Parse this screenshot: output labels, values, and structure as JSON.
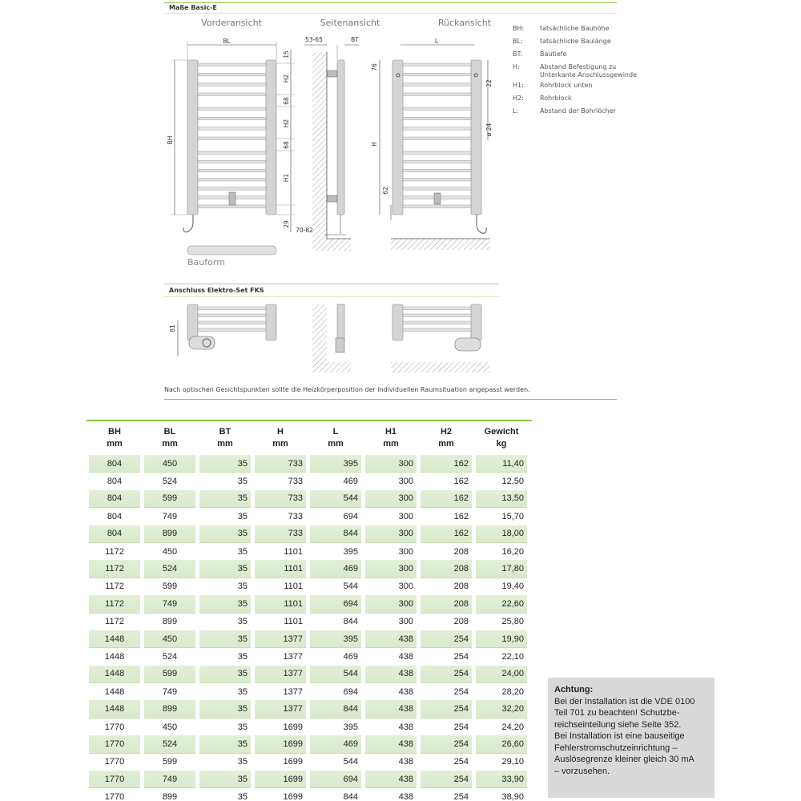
{
  "section1": {
    "title": "Maße Basic-E",
    "views": [
      "Vorderansicht",
      "Seitenansicht",
      "Rückansicht"
    ],
    "bauform_label": "Bauform",
    "dims": {
      "bl": "BL",
      "bh": "BH",
      "d15": "15",
      "h2a": "H2",
      "d68a": "68",
      "h2b": "H2",
      "d68b": "68",
      "h1": "H1",
      "d29": "29",
      "d5365": "53-65",
      "bt": "BT",
      "d7082": "70-82",
      "l": "L",
      "d76": "76",
      "h": "H",
      "d62": "62",
      "d22": "22",
      "d24": "ø 24"
    }
  },
  "legend": [
    {
      "key": "BH:",
      "text": "tatsächliche Bauhöhe"
    },
    {
      "key": "BL:",
      "text": "tatsächliche Baulänge"
    },
    {
      "key": "BT:",
      "text": "Bautiefe"
    },
    {
      "key": "H:",
      "text": "Abstand Befestigung zu Unterkante Anschlussgewinde"
    },
    {
      "key": "H1:",
      "text": "Rohrblock unten"
    },
    {
      "key": "H2:",
      "text": "Rohrblock"
    },
    {
      "key": "L:",
      "text": "Abstand der Bohrlöcher"
    }
  ],
  "section2": {
    "title": "Anschluss Elektro-Set FKS",
    "dim81": "81"
  },
  "footnote": "Nach optischen Gesichtspunkten sollte die Heizkörperposition der individuellen Raumsituation angepasst werden.",
  "table": {
    "headers": [
      [
        "BH",
        "mm"
      ],
      [
        "BL",
        "mm"
      ],
      [
        "BT",
        "mm"
      ],
      [
        "H",
        "mm"
      ],
      [
        "L",
        "mm"
      ],
      [
        "H1",
        "mm"
      ],
      [
        "H2",
        "mm"
      ],
      [
        "Gewicht",
        "kg"
      ]
    ],
    "rows": [
      [
        "804",
        "450",
        "35",
        "733",
        "395",
        "300",
        "162",
        "11,40"
      ],
      [
        "804",
        "524",
        "35",
        "733",
        "469",
        "300",
        "162",
        "12,50"
      ],
      [
        "804",
        "599",
        "35",
        "733",
        "544",
        "300",
        "162",
        "13,50"
      ],
      [
        "804",
        "749",
        "35",
        "733",
        "694",
        "300",
        "162",
        "15,70"
      ],
      [
        "804",
        "899",
        "35",
        "733",
        "844",
        "300",
        "162",
        "18,00"
      ],
      [
        "1172",
        "450",
        "35",
        "1101",
        "395",
        "300",
        "208",
        "16,20"
      ],
      [
        "1172",
        "524",
        "35",
        "1101",
        "469",
        "300",
        "208",
        "17,80"
      ],
      [
        "1172",
        "599",
        "35",
        "1101",
        "544",
        "300",
        "208",
        "19,40"
      ],
      [
        "1172",
        "749",
        "35",
        "1101",
        "694",
        "300",
        "208",
        "22,60"
      ],
      [
        "1172",
        "899",
        "35",
        "1101",
        "844",
        "300",
        "208",
        "25,80"
      ],
      [
        "1448",
        "450",
        "35",
        "1377",
        "395",
        "438",
        "254",
        "19,90"
      ],
      [
        "1448",
        "524",
        "35",
        "1377",
        "469",
        "438",
        "254",
        "22,10"
      ],
      [
        "1448",
        "599",
        "35",
        "1377",
        "544",
        "438",
        "254",
        "24,00"
      ],
      [
        "1448",
        "749",
        "35",
        "1377",
        "694",
        "438",
        "254",
        "28,20"
      ],
      [
        "1448",
        "899",
        "35",
        "1377",
        "844",
        "438",
        "254",
        "32,20"
      ],
      [
        "1770",
        "450",
        "35",
        "1699",
        "395",
        "438",
        "254",
        "24,20"
      ],
      [
        "1770",
        "524",
        "35",
        "1699",
        "469",
        "438",
        "254",
        "26,60"
      ],
      [
        "1770",
        "599",
        "35",
        "1699",
        "544",
        "438",
        "254",
        "29,10"
      ],
      [
        "1770",
        "749",
        "35",
        "1699",
        "694",
        "438",
        "254",
        "33,90"
      ],
      [
        "1770",
        "899",
        "35",
        "1699",
        "844",
        "438",
        "254",
        "38,90"
      ]
    ]
  },
  "note": {
    "title": "Achtung:",
    "lines": [
      "Bei der Installation ist die VDE 0100",
      "Teil 701 zu beachten! Schutzbe-",
      "reichseinteilung siehe Seite 352.",
      "Bei Installation ist eine bauseitige",
      "Fehlerstromschutzeinrichtung –",
      "Auslösegrenze kleiner gleich 30 mA",
      "– vorzusehen."
    ]
  },
  "colors": {
    "accent": "#8cc63f",
    "row_shade": "#dcebd0",
    "note_bg": "#d9d9d9"
  }
}
